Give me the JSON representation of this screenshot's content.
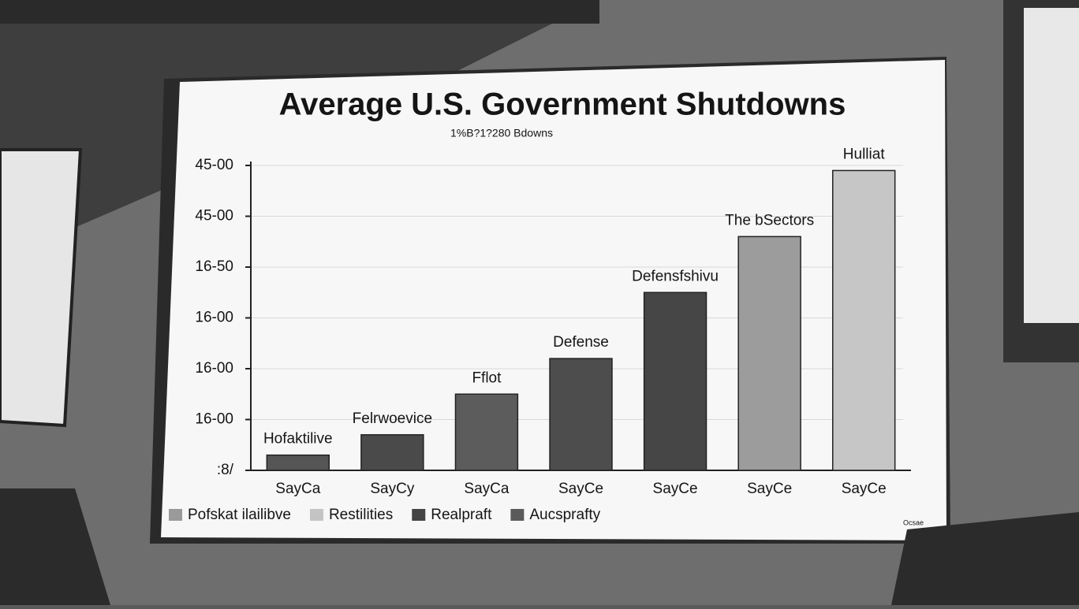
{
  "chart_data": {
    "type": "bar",
    "title": "Average U.S. Government Shutdowns",
    "subtitle": "1%B?1?280 Bdowns",
    "categories": [
      "SayCa",
      "SayCy",
      "SayCa",
      "SayCe",
      "SayCe",
      "SayCe",
      "SayCe"
    ],
    "values": [
      0.3,
      0.7,
      1.5,
      2.2,
      3.5,
      4.6,
      5.9
    ],
    "bar_labels": [
      "Hofaktilive",
      "Felrwoevice",
      "Fflot",
      "Defense",
      "Defensfshivu",
      "The bSectors",
      "Hulliat"
    ],
    "colors": [
      "#555555",
      "#4a4a4a",
      "#5c5c5c",
      "#4d4d4d",
      "#464646",
      "#9c9c9c",
      "#c6c6c6"
    ],
    "ylim": [
      0,
      6
    ],
    "yticks": [
      {
        "value": 0,
        "label": ":8/"
      },
      {
        "value": 1,
        "label": "16-00"
      },
      {
        "value": 2,
        "label": "16-00"
      },
      {
        "value": 3,
        "label": "16-00"
      },
      {
        "value": 4,
        "label": "16-50"
      },
      {
        "value": 5,
        "label": "45-00"
      },
      {
        "value": 6,
        "label": "45-00"
      }
    ],
    "grid": true,
    "legend": [
      {
        "name": "Pofskat ilailibve",
        "color": "#9a9a9a"
      },
      {
        "name": "Restilities",
        "color": "#c4c4c4"
      },
      {
        "name": "Realpraft",
        "color": "#444444"
      },
      {
        "name": "Aucspraftу",
        "color": "#5a5a5a"
      }
    ],
    "note": "Ocsae"
  }
}
